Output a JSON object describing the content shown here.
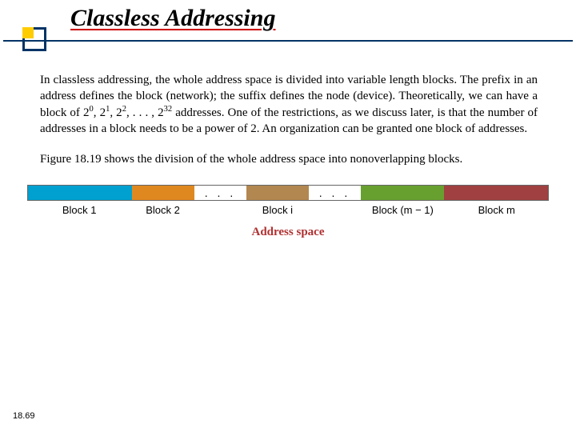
{
  "title": "Classless Addressing",
  "paragraph1_html": "In classless addressing, the whole address space is divided into variable length blocks. The prefix in an address defines the block (network); the suffix defines the node (device). Theoretically, we can have a block of 2<sup>0</sup>, 2<sup>1</sup>, 2<sup>2</sup>, . . . , 2<sup>32</sup> addresses. One of the restrictions, as we discuss later, is that the number of addresses in a block needs to be a power of 2. An organization can be granted one block of addresses.",
  "paragraph2": "Figure 18.19 shows the division of the whole address space into nonoverlapping blocks.",
  "figure": {
    "blocks": [
      {
        "label": "Block 1",
        "color": "#00a0d0",
        "width_pct": 20
      },
      {
        "label": "Block 2",
        "color": "#e08820",
        "width_pct": 12
      },
      {
        "label": "Block i",
        "color": "#b28850",
        "width_pct": 12,
        "ellipsis_before_pct": 10
      },
      {
        "label": "Block (m − 1)",
        "color": "#68a030",
        "width_pct": 16,
        "ellipsis_before_pct": 10
      },
      {
        "label": "Block m",
        "color": "#a04040",
        "width_pct": 20
      }
    ],
    "ellipsis": ". . .",
    "caption": "Address space",
    "caption_color": "#b03030"
  },
  "page_number": "18.69"
}
